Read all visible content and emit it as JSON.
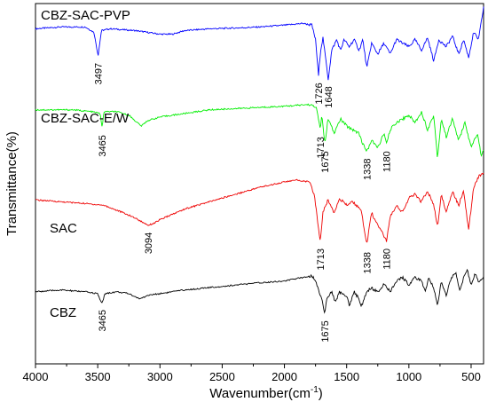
{
  "chart_data": {
    "type": "line",
    "title": "",
    "xlabel": "Wavenumber(cm",
    "xlabel_sup": "-1",
    "xlabel_end": ")",
    "ylabel": "Transmittance(%)",
    "xlim": [
      4000,
      400
    ],
    "x_reversed": true,
    "x_ticks": [
      4000,
      3500,
      3000,
      2500,
      2000,
      1500,
      1000,
      500
    ],
    "x_tick_labels": [
      "4000",
      "3500",
      "3000",
      "2500",
      "2000",
      "1500",
      "1000",
      "500"
    ],
    "y_ticks_shown": false,
    "grid": false,
    "legend": "none",
    "series": [
      {
        "name": "CBZ-SAC-PVP",
        "color": "#0000ff",
        "level": 0.93,
        "points": [
          [
            4000,
            0.93
          ],
          [
            3800,
            0.935
          ],
          [
            3600,
            0.935
          ],
          [
            3530,
            0.92
          ],
          [
            3497,
            0.855
          ],
          [
            3470,
            0.925
          ],
          [
            3400,
            0.93
          ],
          [
            3200,
            0.925
          ],
          [
            3100,
            0.92
          ],
          [
            3000,
            0.915
          ],
          [
            2900,
            0.915
          ],
          [
            2800,
            0.925
          ],
          [
            2600,
            0.93
          ],
          [
            2400,
            0.932
          ],
          [
            2200,
            0.935
          ],
          [
            2000,
            0.94
          ],
          [
            1850,
            0.945
          ],
          [
            1780,
            0.94
          ],
          [
            1750,
            0.9
          ],
          [
            1726,
            0.8
          ],
          [
            1710,
            0.87
          ],
          [
            1690,
            0.905
          ],
          [
            1670,
            0.85
          ],
          [
            1648,
            0.79
          ],
          [
            1620,
            0.87
          ],
          [
            1580,
            0.9
          ],
          [
            1550,
            0.87
          ],
          [
            1520,
            0.9
          ],
          [
            1480,
            0.88
          ],
          [
            1440,
            0.9
          ],
          [
            1400,
            0.87
          ],
          [
            1370,
            0.9
          ],
          [
            1338,
            0.82
          ],
          [
            1300,
            0.89
          ],
          [
            1250,
            0.86
          ],
          [
            1200,
            0.89
          ],
          [
            1150,
            0.86
          ],
          [
            1100,
            0.9
          ],
          [
            1000,
            0.88
          ],
          [
            950,
            0.9
          ],
          [
            900,
            0.87
          ],
          [
            850,
            0.905
          ],
          [
            800,
            0.84
          ],
          [
            760,
            0.9
          ],
          [
            700,
            0.88
          ],
          [
            650,
            0.91
          ],
          [
            600,
            0.86
          ],
          [
            560,
            0.9
          ],
          [
            520,
            0.85
          ],
          [
            480,
            0.92
          ],
          [
            440,
            0.9
          ],
          [
            400,
            0.99
          ]
        ],
        "annotations": [
          {
            "x": 3497,
            "label": "3497"
          },
          {
            "x": 1726,
            "label": "1726"
          },
          {
            "x": 1648,
            "label": "1648"
          }
        ]
      },
      {
        "name": "CBZ-SAC-E/W",
        "color": "#00ee00",
        "level": 0.7,
        "points": [
          [
            4000,
            0.705
          ],
          [
            3700,
            0.705
          ],
          [
            3550,
            0.7
          ],
          [
            3480,
            0.695
          ],
          [
            3465,
            0.655
          ],
          [
            3450,
            0.7
          ],
          [
            3350,
            0.7
          ],
          [
            3250,
            0.69
          ],
          [
            3200,
            0.675
          ],
          [
            3150,
            0.66
          ],
          [
            3100,
            0.675
          ],
          [
            3000,
            0.685
          ],
          [
            2900,
            0.69
          ],
          [
            2600,
            0.705
          ],
          [
            2300,
            0.71
          ],
          [
            2000,
            0.715
          ],
          [
            1800,
            0.72
          ],
          [
            1740,
            0.71
          ],
          [
            1713,
            0.65
          ],
          [
            1700,
            0.69
          ],
          [
            1675,
            0.61
          ],
          [
            1650,
            0.68
          ],
          [
            1600,
            0.64
          ],
          [
            1550,
            0.68
          ],
          [
            1500,
            0.66
          ],
          [
            1450,
            0.65
          ],
          [
            1400,
            0.64
          ],
          [
            1370,
            0.61
          ],
          [
            1338,
            0.59
          ],
          [
            1300,
            0.62
          ],
          [
            1250,
            0.6
          ],
          [
            1200,
            0.64
          ],
          [
            1180,
            0.61
          ],
          [
            1150,
            0.65
          ],
          [
            1100,
            0.67
          ],
          [
            1050,
            0.68
          ],
          [
            1000,
            0.69
          ],
          [
            950,
            0.67
          ],
          [
            900,
            0.7
          ],
          [
            850,
            0.65
          ],
          [
            800,
            0.69
          ],
          [
            770,
            0.57
          ],
          [
            740,
            0.68
          ],
          [
            700,
            0.63
          ],
          [
            650,
            0.68
          ],
          [
            600,
            0.62
          ],
          [
            550,
            0.67
          ],
          [
            500,
            0.6
          ],
          [
            450,
            0.64
          ],
          [
            420,
            0.58
          ],
          [
            400,
            0.59
          ]
        ],
        "annotations": [
          {
            "x": 3465,
            "label": "3465"
          },
          {
            "x": 1713,
            "label": "1713"
          },
          {
            "x": 1675,
            "label": "1675"
          },
          {
            "x": 1338,
            "label": "1338"
          },
          {
            "x": 1180,
            "label": "1180"
          }
        ]
      },
      {
        "name": "SAC",
        "color": "#ee0000",
        "level": 0.46,
        "points": [
          [
            4000,
            0.455
          ],
          [
            3800,
            0.45
          ],
          [
            3600,
            0.445
          ],
          [
            3450,
            0.44
          ],
          [
            3300,
            0.42
          ],
          [
            3200,
            0.405
          ],
          [
            3150,
            0.395
          ],
          [
            3094,
            0.385
          ],
          [
            3050,
            0.39
          ],
          [
            3000,
            0.4
          ],
          [
            2900,
            0.415
          ],
          [
            2800,
            0.43
          ],
          [
            2600,
            0.45
          ],
          [
            2400,
            0.47
          ],
          [
            2200,
            0.49
          ],
          [
            2000,
            0.505
          ],
          [
            1900,
            0.51
          ],
          [
            1800,
            0.505
          ],
          [
            1760,
            0.47
          ],
          [
            1713,
            0.34
          ],
          [
            1690,
            0.42
          ],
          [
            1650,
            0.455
          ],
          [
            1600,
            0.42
          ],
          [
            1560,
            0.46
          ],
          [
            1500,
            0.44
          ],
          [
            1460,
            0.45
          ],
          [
            1420,
            0.44
          ],
          [
            1380,
            0.42
          ],
          [
            1338,
            0.33
          ],
          [
            1300,
            0.42
          ],
          [
            1260,
            0.39
          ],
          [
            1220,
            0.37
          ],
          [
            1180,
            0.34
          ],
          [
            1150,
            0.41
          ],
          [
            1100,
            0.44
          ],
          [
            1050,
            0.42
          ],
          [
            1000,
            0.46
          ],
          [
            950,
            0.47
          ],
          [
            900,
            0.45
          ],
          [
            850,
            0.48
          ],
          [
            800,
            0.44
          ],
          [
            770,
            0.38
          ],
          [
            740,
            0.47
          ],
          [
            700,
            0.42
          ],
          [
            650,
            0.48
          ],
          [
            600,
            0.44
          ],
          [
            560,
            0.48
          ],
          [
            520,
            0.37
          ],
          [
            480,
            0.49
          ],
          [
            440,
            0.52
          ],
          [
            400,
            0.53
          ]
        ],
        "annotations": [
          {
            "x": 3094,
            "label": "3094"
          },
          {
            "x": 1713,
            "label": "1713"
          },
          {
            "x": 1338,
            "label": "1338"
          },
          {
            "x": 1180,
            "label": "1180"
          }
        ]
      },
      {
        "name": "CBZ",
        "color": "#000000",
        "level": 0.22,
        "points": [
          [
            4000,
            0.2
          ],
          [
            3800,
            0.205
          ],
          [
            3600,
            0.2
          ],
          [
            3500,
            0.195
          ],
          [
            3480,
            0.175
          ],
          [
            3465,
            0.17
          ],
          [
            3440,
            0.195
          ],
          [
            3350,
            0.2
          ],
          [
            3250,
            0.195
          ],
          [
            3160,
            0.18
          ],
          [
            3100,
            0.19
          ],
          [
            3000,
            0.195
          ],
          [
            2800,
            0.205
          ],
          [
            2500,
            0.215
          ],
          [
            2200,
            0.225
          ],
          [
            2000,
            0.23
          ],
          [
            1850,
            0.24
          ],
          [
            1780,
            0.245
          ],
          [
            1750,
            0.23
          ],
          [
            1720,
            0.2
          ],
          [
            1700,
            0.18
          ],
          [
            1675,
            0.14
          ],
          [
            1660,
            0.18
          ],
          [
            1620,
            0.2
          ],
          [
            1590,
            0.17
          ],
          [
            1560,
            0.2
          ],
          [
            1500,
            0.19
          ],
          [
            1480,
            0.16
          ],
          [
            1440,
            0.2
          ],
          [
            1400,
            0.18
          ],
          [
            1380,
            0.16
          ],
          [
            1340,
            0.2
          ],
          [
            1300,
            0.21
          ],
          [
            1250,
            0.2
          ],
          [
            1200,
            0.22
          ],
          [
            1150,
            0.2
          ],
          [
            1100,
            0.23
          ],
          [
            1050,
            0.24
          ],
          [
            1000,
            0.22
          ],
          [
            950,
            0.24
          ],
          [
            900,
            0.23
          ],
          [
            870,
            0.2
          ],
          [
            840,
            0.24
          ],
          [
            800,
            0.21
          ],
          [
            770,
            0.16
          ],
          [
            740,
            0.23
          ],
          [
            700,
            0.19
          ],
          [
            660,
            0.24
          ],
          [
            620,
            0.25
          ],
          [
            590,
            0.2
          ],
          [
            560,
            0.24
          ],
          [
            530,
            0.26
          ],
          [
            500,
            0.22
          ],
          [
            470,
            0.25
          ],
          [
            440,
            0.23
          ],
          [
            400,
            0.24
          ]
        ],
        "annotations": [
          {
            "x": 3465,
            "label": "3465"
          },
          {
            "x": 1675,
            "label": "1675"
          }
        ]
      }
    ]
  }
}
